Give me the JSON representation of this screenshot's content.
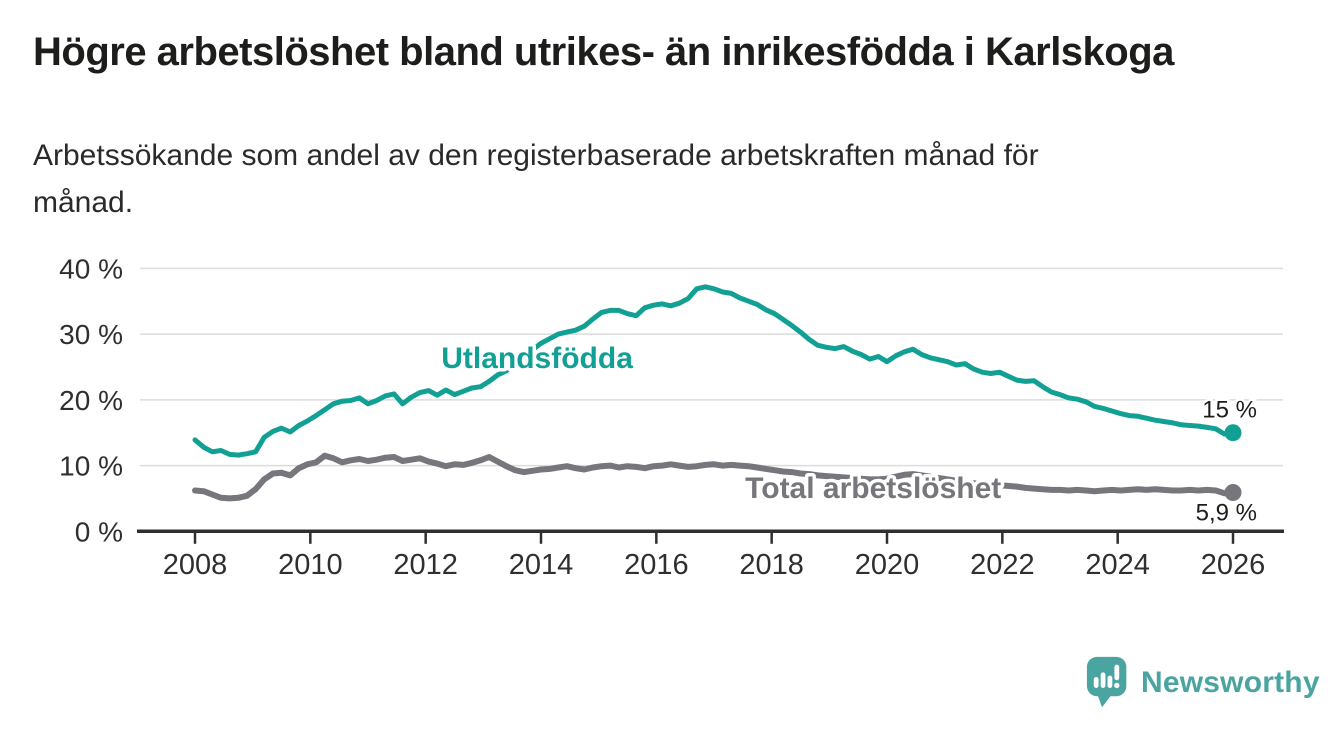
{
  "header": {
    "title": "Högre arbetslöshet bland utrikes- än inrikesfödda i Karlskoga",
    "subtitle": "Arbetssökande som andel av den registerbaserade arbetskraften månad för månad.",
    "subtitle_lines": [
      "Arbetssökande som andel av den registerbaserade arbetskraften månad för",
      "månad."
    ]
  },
  "chart_data": {
    "type": "line",
    "title": "Högre arbetslöshet bland utrikes- än inrikesfödda i Karlskoga",
    "xlabel": "",
    "ylabel": "",
    "x_start": 2008,
    "x_step": 0.15,
    "x_range": [
      2007.05,
      2026.87
    ],
    "ylim": [
      0,
      42
    ],
    "grid": "horizontal",
    "legend_position": "inline-labels",
    "x_ticks": [
      2008,
      2010,
      2012,
      2014,
      2016,
      2018,
      2020,
      2022,
      2024,
      2026
    ],
    "y_ticks": [
      {
        "value": 40,
        "label": "40 %"
      },
      {
        "value": 30,
        "label": "30 %"
      },
      {
        "value": 20,
        "label": "20 %"
      },
      {
        "value": 10,
        "label": "10 %"
      },
      {
        "value": 0,
        "label": "0 %"
      }
    ],
    "axis_color": "#2f2f2f",
    "grid_color": "#dcdcdc",
    "series": [
      {
        "name": "Utlandsfödda",
        "color": "#12a095",
        "line_width": 5,
        "end_label": "15 %",
        "end_label_side": "above",
        "end_value": 15.0,
        "label_anchor": {
          "x": 2012.27,
          "y": 24.85
        },
        "values": [
          13.9,
          12.8,
          12.1,
          12.3,
          11.7,
          11.6,
          11.8,
          12.1,
          14.3,
          15.2,
          15.7,
          15.1,
          16.1,
          16.8,
          17.6,
          18.5,
          19.4,
          19.8,
          19.9,
          20.3,
          19.4,
          19.9,
          20.6,
          20.9,
          19.4,
          20.4,
          21.1,
          21.4,
          20.7,
          21.5,
          20.8,
          21.3,
          21.8,
          22.0,
          22.8,
          23.8,
          24.4,
          25.5,
          26.8,
          27.6,
          28.6,
          29.3,
          30.0,
          30.3,
          30.6,
          31.2,
          32.3,
          33.3,
          33.6,
          33.6,
          33.1,
          32.8,
          34.0,
          34.4,
          34.6,
          34.3,
          34.7,
          35.4,
          36.9,
          37.2,
          36.9,
          36.4,
          36.2,
          35.5,
          35.0,
          34.5,
          33.7,
          33.1,
          32.2,
          31.3,
          30.3,
          29.2,
          28.3,
          28.0,
          27.8,
          28.1,
          27.4,
          26.9,
          26.2,
          26.6,
          25.8,
          26.7,
          27.3,
          27.7,
          26.9,
          26.4,
          26.1,
          25.8,
          25.3,
          25.5,
          24.7,
          24.2,
          24.0,
          24.2,
          23.6,
          23.0,
          22.8,
          22.9,
          22.0,
          21.2,
          20.8,
          20.3,
          20.1,
          19.7,
          19.0,
          18.7,
          18.3,
          17.9,
          17.6,
          17.5,
          17.2,
          16.9,
          16.7,
          16.5,
          16.2,
          16.1,
          16.0,
          15.8,
          15.6,
          14.8,
          15.0
        ]
      },
      {
        "name": "Total arbetslöshet",
        "color": "#76767c",
        "line_width": 6,
        "end_label": "5,9 %",
        "end_label_side": "below",
        "end_value": 5.9,
        "label_anchor": {
          "x": 2017.54,
          "y": 5.05
        },
        "values": [
          6.2,
          6.1,
          5.6,
          5.1,
          5.0,
          5.1,
          5.4,
          6.4,
          7.9,
          8.8,
          8.9,
          8.5,
          9.6,
          10.2,
          10.5,
          11.5,
          11.1,
          10.5,
          10.8,
          11.0,
          10.7,
          10.9,
          11.2,
          11.3,
          10.7,
          10.9,
          11.1,
          10.6,
          10.3,
          9.9,
          10.2,
          10.1,
          10.4,
          10.8,
          11.3,
          10.6,
          9.9,
          9.3,
          9.0,
          9.2,
          9.4,
          9.5,
          9.7,
          9.9,
          9.6,
          9.4,
          9.7,
          9.9,
          10.0,
          9.7,
          9.9,
          9.8,
          9.6,
          9.9,
          10.0,
          10.2,
          10.0,
          9.8,
          9.9,
          10.1,
          10.2,
          10.0,
          10.1,
          10.0,
          9.9,
          9.7,
          9.5,
          9.3,
          9.1,
          9.0,
          8.8,
          8.7,
          8.5,
          8.4,
          8.3,
          8.2,
          8.1,
          8.0,
          7.9,
          7.9,
          8.0,
          8.3,
          8.6,
          8.7,
          8.5,
          8.3,
          8.1,
          7.9,
          7.7,
          7.5,
          7.3,
          7.2,
          7.1,
          7.0,
          6.9,
          6.8,
          6.6,
          6.5,
          6.4,
          6.3,
          6.3,
          6.2,
          6.3,
          6.2,
          6.1,
          6.2,
          6.3,
          6.2,
          6.3,
          6.4,
          6.3,
          6.4,
          6.3,
          6.2,
          6.2,
          6.3,
          6.2,
          6.3,
          6.2,
          5.8,
          5.9
        ]
      }
    ]
  },
  "logo": {
    "name": "Newsworthy",
    "brand_color": "#4aa5a1",
    "icon": "bar-chart-speech-bubble"
  }
}
